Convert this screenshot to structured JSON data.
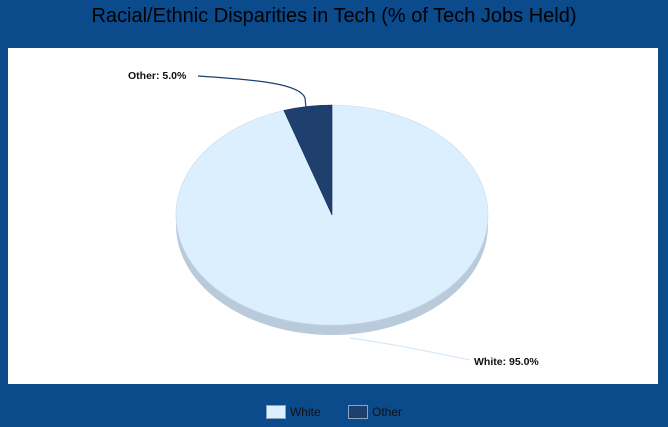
{
  "chart_data": {
    "type": "pie",
    "title": "Racial/Ethnic Disparities in Tech (% of Tech Jobs Held)",
    "slices": [
      {
        "label": "White",
        "value": 95.0,
        "color": "#dcefff",
        "data_label": "White: 95.0%"
      },
      {
        "label": "Other",
        "value": 5.0,
        "color": "#1f3f6e",
        "data_label": "Other: 5.0%"
      }
    ],
    "legend": [
      "White",
      "Other"
    ],
    "legend_position": "bottom",
    "style": "3d-tilted"
  },
  "colors": {
    "background": "#0b4a8b",
    "panel": "#ffffff",
    "edge_light": "#b9cadb",
    "edge_dark": "#16305a"
  }
}
